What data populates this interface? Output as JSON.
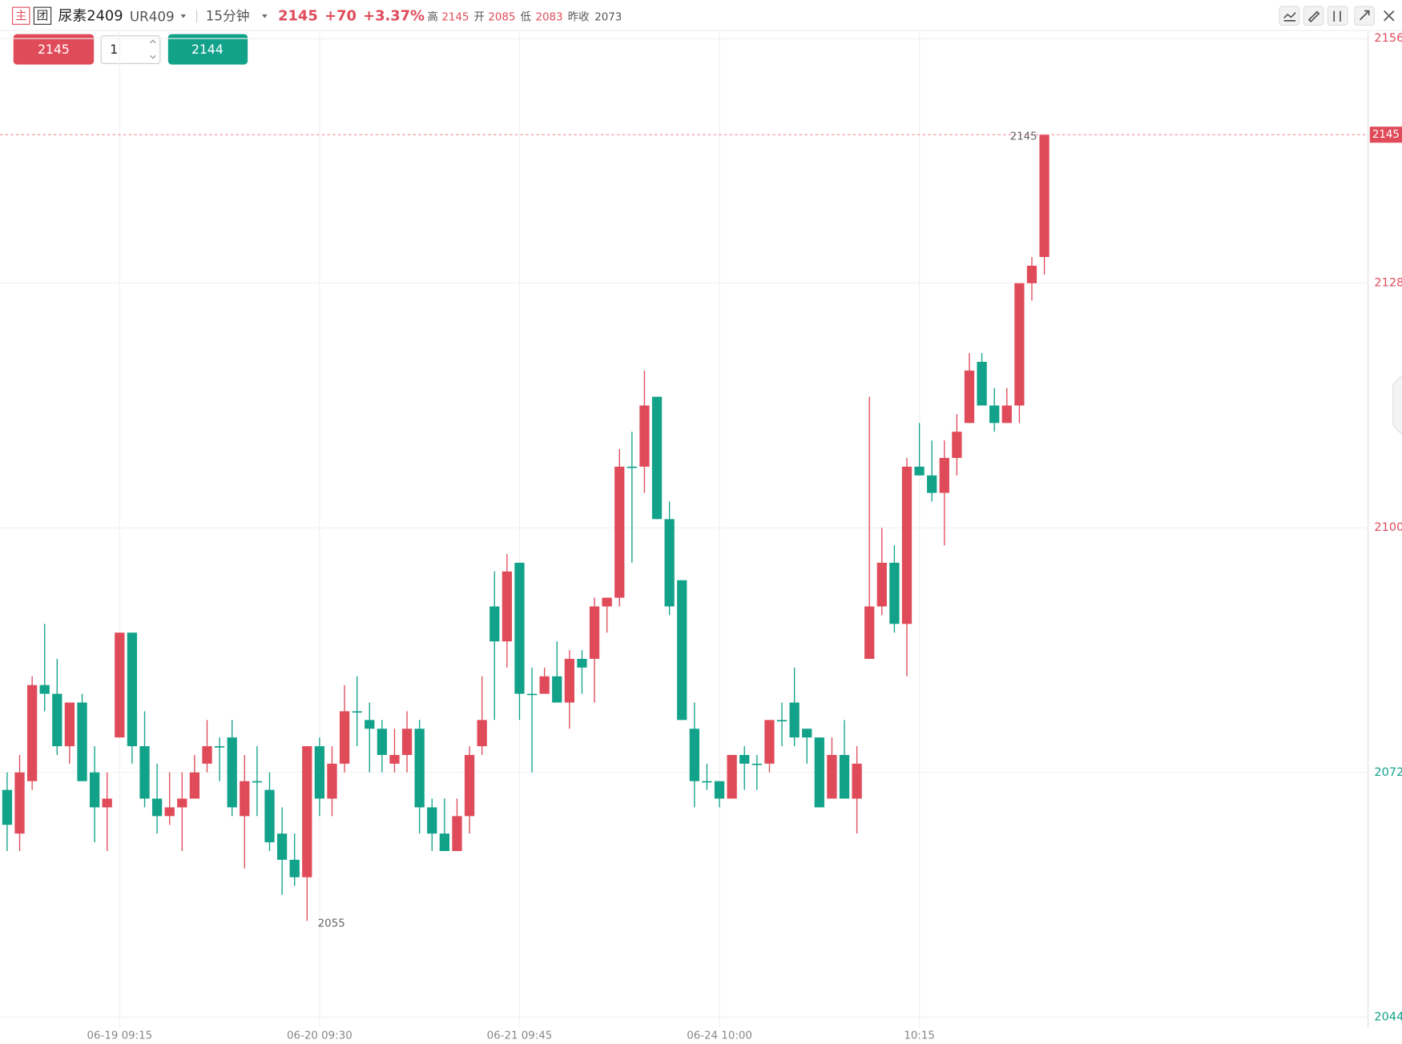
{
  "header": {
    "icons": [
      "主",
      "团"
    ],
    "name": "尿素2409",
    "code": "UR409",
    "period": "15分钟",
    "last": "2145",
    "change": "+70",
    "change_pct": "+3.37%",
    "stats": [
      {
        "label": "高",
        "value": "2145"
      },
      {
        "label": "开",
        "value": "2085"
      },
      {
        "label": "低",
        "value": "2083"
      },
      {
        "label": "昨收",
        "value": "2073"
      }
    ]
  },
  "order": {
    "sell": "2145",
    "quantity": "1",
    "buy": "2144"
  },
  "chart_data": {
    "type": "candlestick",
    "up_color": "#e04b5a",
    "down_color": "#12a28a",
    "categories": [
      null,
      null,
      null,
      null,
      null,
      null,
      null,
      null,
      null,
      "06-19 09:15",
      null,
      null,
      null,
      null,
      null,
      null,
      null,
      null,
      null,
      null,
      null,
      null,
      null,
      null,
      null,
      "06-20 09:30",
      null,
      null,
      null,
      null,
      null,
      null,
      null,
      null,
      null,
      null,
      null,
      null,
      null,
      null,
      null,
      "06-21 09:45",
      null,
      null,
      null,
      null,
      null,
      null,
      null,
      null,
      null,
      null,
      null,
      null,
      null,
      null,
      null,
      "06-24 10:00",
      null,
      null,
      null,
      null,
      null,
      null,
      null,
      null,
      null,
      null,
      null,
      null,
      null,
      null,
      null,
      "10:15",
      null,
      null,
      null,
      null,
      null,
      null,
      null,
      null,
      null,
      null
    ],
    "open": [
      2070,
      2065,
      2071,
      2082,
      2081,
      2075,
      2080,
      2072,
      2068,
      2076,
      2088,
      2075,
      2069,
      2067,
      2068,
      2069,
      2073,
      2075,
      2076,
      2067,
      2071,
      2070,
      2065,
      2062,
      2060,
      2075,
      2069,
      2073,
      2079,
      2078,
      2077,
      2073,
      2074,
      2077,
      2068,
      2065,
      2063,
      2067,
      2075,
      2091,
      2087,
      2096,
      2081,
      2081,
      2083,
      2080,
      2085,
      2085,
      2091,
      2092,
      2107,
      2107,
      2115,
      2101,
      2094,
      2077,
      2071,
      2071,
      2069,
      2074,
      2073,
      2073,
      2078,
      2080,
      2077,
      2076,
      2069,
      2074,
      2069,
      2085,
      2091,
      2096,
      2089,
      2107,
      2106,
      2104,
      2108,
      2112,
      2119,
      2114,
      2112,
      2114,
      2128,
      2131
    ],
    "high": [
      2072,
      2074,
      2083,
      2089,
      2085,
      2080,
      2081,
      2075,
      2072,
      2088,
      2088,
      2079,
      2073,
      2072,
      2072,
      2074,
      2078,
      2076,
      2078,
      2074,
      2075,
      2072,
      2068,
      2065,
      2075,
      2076,
      2075,
      2082,
      2083,
      2080,
      2078,
      2077,
      2079,
      2078,
      2069,
      2069,
      2069,
      2075,
      2083,
      2095,
      2097,
      2096,
      2084,
      2084,
      2087,
      2086,
      2086,
      2092,
      2092,
      2109,
      2111,
      2118,
      2115,
      2103,
      2094,
      2080,
      2073,
      2071,
      2074,
      2075,
      2074,
      2078,
      2080,
      2084,
      2077,
      2076,
      2076,
      2078,
      2075,
      2115,
      2100,
      2098,
      2108,
      2112,
      2110,
      2110,
      2113,
      2120,
      2120,
      2116,
      2116,
      2128,
      2131,
      2145
    ],
    "low": [
      2063,
      2063,
      2070,
      2079,
      2074,
      2073,
      2071,
      2064,
      2063,
      2076,
      2073,
      2068,
      2065,
      2066,
      2063,
      2069,
      2072,
      2071,
      2067,
      2061,
      2067,
      2063,
      2058,
      2059,
      2055,
      2067,
      2067,
      2072,
      2075,
      2072,
      2072,
      2072,
      2072,
      2065,
      2063,
      2063,
      2063,
      2065,
      2074,
      2078,
      2084,
      2078,
      2072,
      2081,
      2080,
      2077,
      2081,
      2080,
      2088,
      2091,
      2096,
      2104,
      2101,
      2090,
      2078,
      2068,
      2070,
      2068,
      2069,
      2070,
      2070,
      2072,
      2075,
      2075,
      2073,
      2068,
      2069,
      2069,
      2065,
      2085,
      2090,
      2088,
      2083,
      2106,
      2103,
      2098,
      2106,
      2112,
      2114,
      2111,
      2112,
      2112,
      2126,
      2129
    ],
    "close": [
      2066,
      2072,
      2082,
      2081,
      2075,
      2080,
      2071,
      2068,
      2069,
      2088,
      2075,
      2069,
      2067,
      2068,
      2069,
      2072,
      2075,
      2075,
      2068,
      2071,
      2071,
      2064,
      2062,
      2060,
      2075,
      2069,
      2073,
      2079,
      2079,
      2077,
      2074,
      2074,
      2077,
      2068,
      2065,
      2063,
      2067,
      2074,
      2078,
      2087,
      2095,
      2081,
      2081,
      2083,
      2080,
      2085,
      2084,
      2091,
      2092,
      2107,
      2107,
      2114,
      2101,
      2091,
      2078,
      2071,
      2071,
      2069,
      2074,
      2073,
      2073,
      2078,
      2078,
      2076,
      2076,
      2068,
      2074,
      2069,
      2073,
      2091,
      2096,
      2089,
      2107,
      2106,
      2104,
      2108,
      2111,
      2118,
      2114,
      2112,
      2114,
      2128,
      2130,
      2145
    ],
    "ylim": [
      2044,
      2156
    ],
    "yticks": [
      2044,
      2072,
      2100,
      2128,
      2156
    ],
    "prev_close": 2073,
    "last_price": 2145,
    "high_mark": 2145,
    "low_mark": 2055,
    "grid": true
  }
}
